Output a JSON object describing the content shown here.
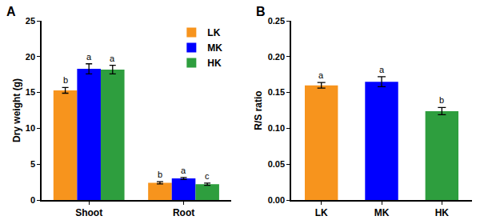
{
  "chart_data": [
    {
      "type": "bar",
      "title": "A",
      "categories": [
        "Shoot",
        "Root"
      ],
      "series": [
        {
          "name": "LK",
          "color": "#f7941d",
          "values": [
            15.3,
            2.4
          ],
          "errors": [
            0.4,
            0.15
          ],
          "letters": [
            "b",
            "b"
          ]
        },
        {
          "name": "MK",
          "color": "#0000ff",
          "values": [
            18.3,
            3.0
          ],
          "errors": [
            0.7,
            0.15
          ],
          "letters": [
            "a",
            "a"
          ]
        },
        {
          "name": "HK",
          "color": "#2e9e3e",
          "values": [
            18.2,
            2.2
          ],
          "errors": [
            0.6,
            0.15
          ],
          "letters": [
            "a",
            "c"
          ]
        }
      ],
      "y_label": "Dry weight (g)",
      "ylim": [
        0,
        25
      ],
      "yticks": [
        0,
        5,
        10,
        15,
        20,
        25
      ],
      "legend": "upper right"
    },
    {
      "type": "bar",
      "title": "B",
      "categories": [
        "LK",
        "MK",
        "HK"
      ],
      "values": [
        0.16,
        0.165,
        0.124
      ],
      "errors": [
        0.004,
        0.007,
        0.005
      ],
      "letters": [
        "a",
        "a",
        "b"
      ],
      "colors": [
        "#f7941d",
        "#0000ff",
        "#2e9e3e"
      ],
      "y_label": "R/S ratio",
      "ylim": [
        0,
        0.25
      ],
      "yticks": [
        {
          "value": 0,
          "label": "0.00"
        },
        {
          "value": 0.05,
          "label": "0.05"
        },
        {
          "value": 0.1,
          "label": "0.10"
        },
        {
          "value": 0.15,
          "label": "0.15"
        },
        {
          "value": 0.2,
          "label": "0.20"
        },
        {
          "value": 0.25,
          "label": "0.25"
        }
      ]
    }
  ]
}
